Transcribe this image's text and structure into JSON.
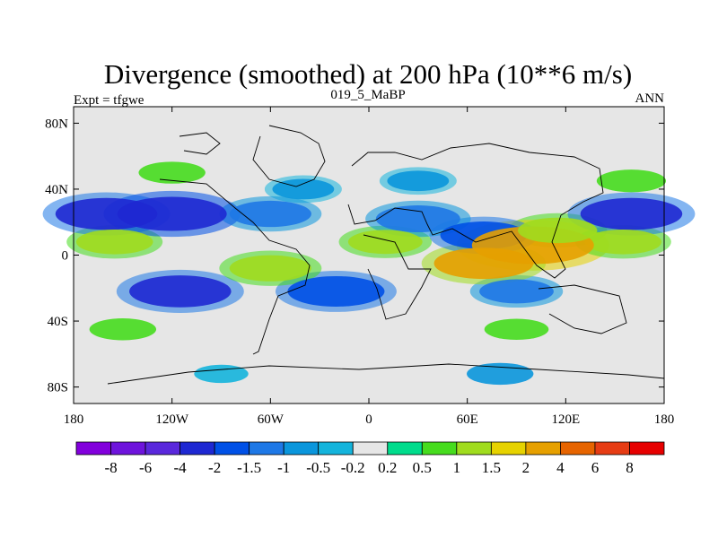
{
  "chart_data": {
    "type": "heatmap",
    "title": "Divergence (smoothed) at 200 hPa (10**6 m/s)",
    "left_string": "Expt = tfgwe",
    "center_string": "019_5_MaBP",
    "right_string": "ANN",
    "x_range": [
      -180,
      180
    ],
    "y_range": [
      -90,
      90
    ],
    "x_ticks": [
      {
        "value": -180,
        "label": "180"
      },
      {
        "value": -120,
        "label": "120W"
      },
      {
        "value": -60,
        "label": "60W"
      },
      {
        "value": 0,
        "label": "0"
      },
      {
        "value": 60,
        "label": "60E"
      },
      {
        "value": 120,
        "label": "120E"
      },
      {
        "value": 180,
        "label": "180"
      }
    ],
    "y_ticks": [
      {
        "value": 80,
        "label": "80N"
      },
      {
        "value": 40,
        "label": "40N"
      },
      {
        "value": 0,
        "label": "0"
      },
      {
        "value": -40,
        "label": "40S"
      },
      {
        "value": -80,
        "label": "80S"
      }
    ],
    "colorbar": {
      "levels": [
        "-8",
        "-6",
        "-4",
        "-2",
        "-1.5",
        "-1",
        "-0.5",
        "-0.2",
        "0.2",
        "0.5",
        "1",
        "1.5",
        "2",
        "4",
        "6",
        "8"
      ],
      "colors": [
        "#8200dc",
        "#6e14dc",
        "#5a28dc",
        "#1e28d2",
        "#0050e6",
        "#1e78e6",
        "#0a96dc",
        "#14b4dc",
        "#e6e6e6",
        "#00dc8c",
        "#46dc1e",
        "#a0dc1e",
        "#e6d200",
        "#e6a000",
        "#e66400",
        "#e63c14",
        "#e60000"
      ]
    },
    "regions": [
      {
        "lon": 0,
        "lat": 0,
        "value": 0.0
      },
      {
        "lon": -120,
        "lat": 25,
        "value": -2.5
      },
      {
        "lon": -160,
        "lat": 25,
        "value": -2.2
      },
      {
        "lon": 160,
        "lat": 25,
        "value": -2.2
      },
      {
        "lon": -60,
        "lat": 25,
        "value": -1.4
      },
      {
        "lon": 30,
        "lat": 22,
        "value": -1.5
      },
      {
        "lon": 70,
        "lat": 12,
        "value": -1.6
      },
      {
        "lon": -40,
        "lat": 40,
        "value": -0.6
      },
      {
        "lon": 30,
        "lat": 45,
        "value": -0.6
      },
      {
        "lon": -155,
        "lat": 8,
        "value": 1.2
      },
      {
        "lon": 155,
        "lat": 8,
        "value": 1.2
      },
      {
        "lon": -60,
        "lat": -8,
        "value": 1.4
      },
      {
        "lon": 10,
        "lat": 8,
        "value": 1.1
      },
      {
        "lon": 70,
        "lat": -5,
        "value": 2.1
      },
      {
        "lon": 100,
        "lat": 6,
        "value": 3.0
      },
      {
        "lon": 115,
        "lat": 15,
        "value": 1.3
      },
      {
        "lon": -115,
        "lat": -22,
        "value": -2.2
      },
      {
        "lon": -20,
        "lat": -22,
        "value": -2.0
      },
      {
        "lon": 90,
        "lat": -22,
        "value": -1.1
      },
      {
        "lon": -150,
        "lat": -45,
        "value": 0.8
      },
      {
        "lon": 90,
        "lat": -45,
        "value": 0.7
      },
      {
        "lon": -120,
        "lat": 50,
        "value": 0.8
      },
      {
        "lon": 160,
        "lat": 45,
        "value": 0.9
      },
      {
        "lon": 80,
        "lat": -72,
        "value": -0.8
      },
      {
        "lon": -90,
        "lat": -72,
        "value": -0.3
      }
    ]
  }
}
